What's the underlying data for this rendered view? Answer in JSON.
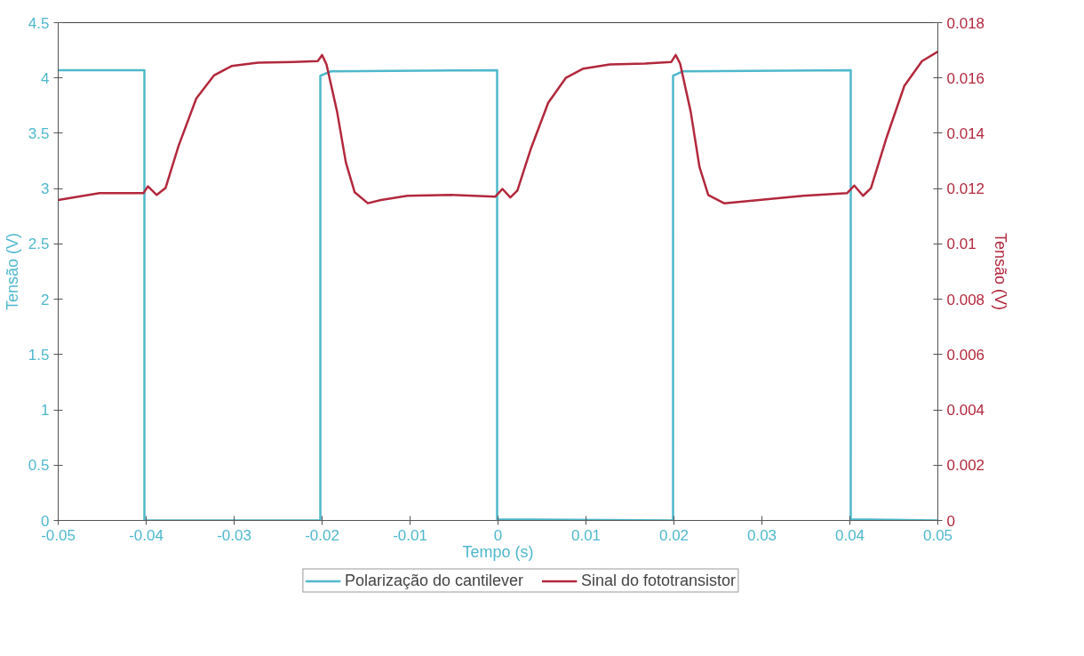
{
  "chart_data": {
    "type": "line",
    "xlabel": "Tempo (s)",
    "ylabel": "Tensão (V)",
    "y2label": "Tensão (V)",
    "xlim": [
      -0.05,
      0.05
    ],
    "xticks": [
      -0.05,
      -0.04,
      -0.03,
      -0.02,
      -0.01,
      0,
      0.01,
      0.02,
      0.03,
      0.04,
      0.05
    ],
    "ylim": [
      0,
      4.5
    ],
    "yticks": [
      0,
      0.5,
      1,
      1.5,
      2,
      2.5,
      3,
      3.5,
      4,
      4.5
    ],
    "y2lim": [
      0,
      0.018
    ],
    "y2ticks": [
      0,
      0.002,
      0.004,
      0.006,
      0.008,
      0.01,
      0.012,
      0.014,
      0.016,
      0.018
    ],
    "grid": false,
    "legend": "bottom",
    "marker": "none",
    "line_style": "solid",
    "series": [
      {
        "name": "Polarização do cantilever",
        "color": "#4fb8cc",
        "x": [
          -0.05,
          -0.0402,
          -0.0402,
          -0.0202,
          -0.0202,
          -0.019,
          -0.0001,
          -0.0001,
          0.0199,
          0.0199,
          0.021,
          0.0401,
          0.0401,
          0.05
        ],
        "values": [
          4.07,
          4.07,
          0,
          0,
          4.02,
          4.06,
          4.07,
          0.01,
          0,
          4.02,
          4.06,
          4.07,
          0.01,
          0
        ]
      },
      {
        "name": "Sinal do fototransistor",
        "color": "#b2283c",
        "axis": "y2",
        "x": [
          -0.05,
          -0.0453,
          -0.0403,
          -0.0398,
          -0.0388,
          -0.0378,
          -0.0363,
          -0.0343,
          -0.0323,
          -0.0303,
          -0.0273,
          -0.0233,
          -0.0205,
          -0.02,
          -0.0195,
          -0.0183,
          -0.0173,
          -0.0163,
          -0.0148,
          -0.0133,
          -0.0103,
          -0.0053,
          -0.0003,
          0.0005,
          0.0014,
          0.0022,
          0.0037,
          0.0057,
          0.0077,
          0.0097,
          0.0127,
          0.0167,
          0.0197,
          0.0202,
          0.0207,
          0.0219,
          0.0229,
          0.0239,
          0.0257,
          0.0297,
          0.0347,
          0.0397,
          0.0405,
          0.0415,
          0.0424,
          0.0442,
          0.0462,
          0.0482,
          0.05
        ],
        "values": [
          0.01159,
          0.01184,
          0.01184,
          0.01208,
          0.01177,
          0.01202,
          0.01356,
          0.01526,
          0.01609,
          0.01643,
          0.01655,
          0.01658,
          0.01661,
          0.01683,
          0.01649,
          0.01479,
          0.01295,
          0.01187,
          0.01147,
          0.01159,
          0.01174,
          0.01177,
          0.01171,
          0.01199,
          0.01168,
          0.01193,
          0.01341,
          0.0151,
          0.016,
          0.01634,
          0.01649,
          0.01652,
          0.01658,
          0.01683,
          0.01652,
          0.01479,
          0.01279,
          0.01177,
          0.01147,
          0.01159,
          0.01174,
          0.01184,
          0.01211,
          0.01174,
          0.01202,
          0.01387,
          0.01572,
          0.01661,
          0.01695
        ]
      }
    ]
  }
}
